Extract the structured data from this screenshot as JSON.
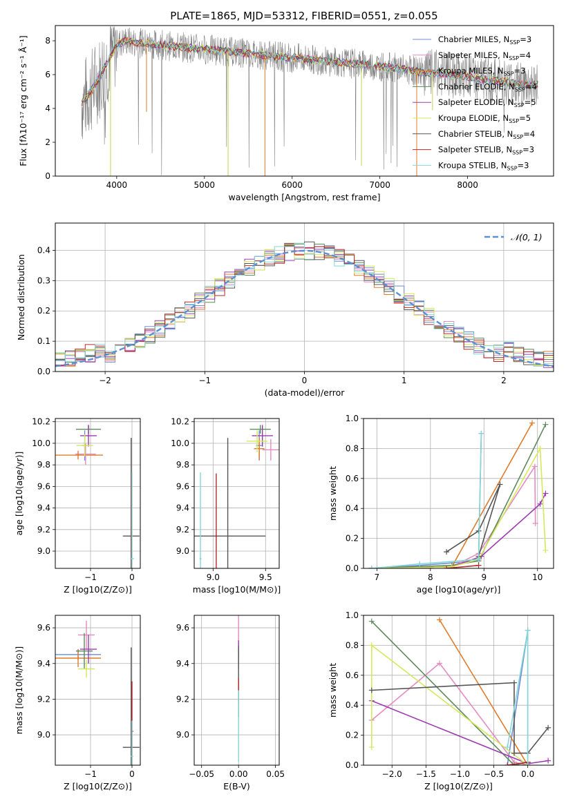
{
  "figure": {
    "title": "PLATE=1865, MJD=53312, FIBERID=0551, z=0.055"
  },
  "chart_data": [
    {
      "type": "line",
      "panel": "spectrum",
      "xlabel": "wavelength [Angstrom, rest frame]",
      "ylabel": "Flux [fλ10⁻¹⁷ erg cm⁻² s⁻¹ Å⁻¹]",
      "xlim": [
        3300,
        8980
      ],
      "ylim": [
        0,
        8.9
      ],
      "xticks": [
        4000,
        5000,
        6000,
        7000,
        8000
      ],
      "yticks": [
        0,
        2,
        4,
        6,
        8
      ],
      "grid": false,
      "legend_position": "top-right",
      "continuum": {
        "x": [
          3600,
          3700,
          3800,
          3900,
          4000,
          4100,
          4200,
          4400,
          4600,
          4800,
          5000,
          5200,
          5400,
          5600,
          5800,
          6000,
          6200,
          6400,
          6600,
          6800,
          7000,
          7200,
          7400,
          7600,
          7800,
          8000,
          8200,
          8400,
          8600,
          8800
        ],
        "y": [
          4.3,
          5.0,
          5.8,
          6.8,
          7.8,
          8.0,
          7.9,
          7.8,
          7.7,
          7.6,
          7.5,
          7.4,
          7.3,
          7.2,
          7.1,
          7.0,
          6.9,
          6.8,
          6.7,
          6.6,
          6.5,
          6.4,
          6.2,
          6.1,
          6.0,
          5.9,
          5.7,
          5.6,
          5.4,
          5.4
        ]
      },
      "series": [
        {
          "name": "Chabrier MILES, N_SSP=3",
          "color": "#6a8fd4"
        },
        {
          "name": "Salpeter MILES, N_SSP=4",
          "color": "#e58ac0"
        },
        {
          "name": "Kroupa MILES, N_SSP=3",
          "color": "#e07b2a"
        },
        {
          "name": "Chabrier ELODIE, N_SSP=4",
          "color": "#5b8a5b"
        },
        {
          "name": "Salpeter ELODIE, N_SSP=5",
          "color": "#9b3ab0"
        },
        {
          "name": "Kroupa ELODIE, N_SSP=5",
          "color": "#d4e85a"
        },
        {
          "name": "Chabrier STELIB, N_SSP=4",
          "color": "#555555"
        },
        {
          "name": "Salpeter STELIB, N_SSP=3",
          "color": "#b52a2a"
        },
        {
          "name": "Kroupa STELIB, N_SSP=3",
          "color": "#86d6d6"
        }
      ]
    },
    {
      "type": "line",
      "panel": "residuals",
      "xlabel": "(data-model)/error",
      "ylabel": "Normed distribution",
      "xlim": [
        -2.5,
        2.5
      ],
      "ylim": [
        0,
        0.49
      ],
      "xticks": [
        -2,
        -1,
        0,
        1,
        2
      ],
      "yticks": [
        0.0,
        0.1,
        0.2,
        0.3,
        0.4
      ],
      "grid": true,
      "legend_position": "top-right",
      "reference": {
        "name": "𝒩(0, 1)",
        "mean": 0,
        "sd": 1,
        "color": "#5b8fd4"
      },
      "histogram_bin_width": 0.1
    },
    {
      "type": "scatter",
      "panel": "age-vs-Z",
      "xlabel": "Z [log10(Z/Z⊙)]",
      "ylabel": "age  [log10(age/yr)]",
      "xlim": [
        -1.85,
        0.2
      ],
      "ylim": [
        8.84,
        10.23
      ],
      "xticks": [
        -1,
        0
      ],
      "yticks": [
        9.0,
        9.2,
        9.4,
        9.6,
        9.8,
        10.0,
        10.2
      ],
      "points": [
        {
          "series": "Chabrier MILES",
          "x": -1.14,
          "y": 9.98,
          "xerr": 0.06,
          "yerr": 0.14,
          "color": "#6a8fd4"
        },
        {
          "series": "Salpeter MILES",
          "x": -1.12,
          "y": 9.9,
          "xerr": 0.25,
          "yerr": 0.1,
          "color": "#e58ac0"
        },
        {
          "series": "Kroupa MILES",
          "x": -1.3,
          "y": 9.89,
          "xerr": 0.6,
          "yerr": 0.04,
          "color": "#e07b2a"
        },
        {
          "series": "Chabrier ELODIE",
          "x": -1.05,
          "y": 10.13,
          "xerr": 0.3,
          "yerr": 0.04,
          "color": "#5b8a5b"
        },
        {
          "series": "Salpeter ELODIE",
          "x": -1.05,
          "y": 10.07,
          "xerr": 0.2,
          "yerr": 0.1,
          "color": "#9b3ab0"
        },
        {
          "series": "Kroupa ELODIE",
          "x": -1.14,
          "y": 9.98,
          "xerr": 0.2,
          "yerr": 0.1,
          "color": "#d4e85a"
        },
        {
          "series": "Chabrier STELIB",
          "x": -0.02,
          "y": 9.14,
          "xerr": 0.2,
          "yerr": 0.91,
          "color": "#555555"
        },
        {
          "series": "Salpeter STELIB",
          "x": -0.01,
          "y": 9.14,
          "xerr": 0.01,
          "yerr": 0.58,
          "color": "#b52a2a"
        },
        {
          "series": "Kroupa STELIB",
          "x": 0.0,
          "y": 8.93,
          "xerr": 0.05,
          "yerr": 0.8,
          "color": "#86d6d6"
        }
      ]
    },
    {
      "type": "scatter",
      "panel": "age-vs-mass",
      "xlabel": "mass [log10(M/M⊙)]",
      "xlim": [
        8.82,
        9.63
      ],
      "ylim": [
        8.84,
        10.23
      ],
      "xticks": [
        9.0,
        9.5
      ],
      "yticks": [
        9.0,
        9.2,
        9.4,
        9.6,
        9.8,
        10.0,
        10.2
      ],
      "points": [
        {
          "series": "Chabrier MILES",
          "x": 9.44,
          "y": 9.98,
          "xerr": 0.03,
          "yerr": 0.14,
          "color": "#6a8fd4"
        },
        {
          "series": "Salpeter MILES",
          "x": 9.55,
          "y": 9.94,
          "xerr": 0.08,
          "yerr": 0.1,
          "color": "#e58ac0"
        },
        {
          "series": "Kroupa MILES",
          "x": 9.44,
          "y": 9.95,
          "xerr": 0.05,
          "yerr": 0.1,
          "color": "#e07b2a"
        },
        {
          "series": "Chabrier ELODIE",
          "x": 9.45,
          "y": 10.13,
          "xerr": 0.1,
          "yerr": 0.04,
          "color": "#5b8a5b"
        },
        {
          "series": "Salpeter ELODIE",
          "x": 9.47,
          "y": 10.07,
          "xerr": 0.1,
          "yerr": 0.1,
          "color": "#9b3ab0"
        },
        {
          "series": "Kroupa ELODIE",
          "x": 9.42,
          "y": 10.02,
          "xerr": 0.1,
          "yerr": 0.1,
          "color": "#d4e85a"
        },
        {
          "series": "Chabrier STELIB",
          "x": 9.14,
          "y": 9.14,
          "xerr": 0.36,
          "yerr": 0.91,
          "color": "#555555"
        },
        {
          "series": "Salpeter STELIB",
          "x": 9.03,
          "y": 9.14,
          "xerr": 0.01,
          "yerr": 0.58,
          "color": "#b52a2a"
        },
        {
          "series": "Kroupa STELIB",
          "x": 8.88,
          "y": 8.93,
          "xerr": 0.01,
          "yerr": 0.8,
          "color": "#86d6d6"
        }
      ]
    },
    {
      "type": "line",
      "panel": "mass-weight-vs-age",
      "xlabel": "age  [log10(age/yr)]",
      "ylabel": "mass weight",
      "xlim": [
        6.75,
        10.3
      ],
      "ylim": [
        0,
        1.0
      ],
      "xticks": [
        7,
        8,
        9,
        10
      ],
      "yticks": [
        0.0,
        0.2,
        0.4,
        0.6,
        0.8,
        1.0
      ],
      "series": [
        {
          "name": "Chabrier MILES",
          "color": "#6a8fd4",
          "x": [
            6.9,
            7.8,
            8.9,
            8.95
          ],
          "y": [
            0.0,
            0.02,
            0.05,
            0.9
          ]
        },
        {
          "name": "Salpeter MILES",
          "color": "#e58ac0",
          "x": [
            6.9,
            8.4,
            8.9,
            9.95,
            9.96
          ],
          "y": [
            0.0,
            0.01,
            0.1,
            0.68,
            0.3
          ]
        },
        {
          "name": "Kroupa MILES",
          "color": "#e07b2a",
          "x": [
            6.9,
            8.4,
            9.9
          ],
          "y": [
            0.0,
            0.01,
            0.97
          ]
        },
        {
          "name": "Chabrier ELODIE",
          "color": "#5b8a5b",
          "x": [
            6.9,
            8.4,
            8.9,
            10.15
          ],
          "y": [
            0.0,
            0.02,
            0.05,
            0.96
          ]
        },
        {
          "name": "Salpeter ELODIE",
          "color": "#9b3ab0",
          "x": [
            6.9,
            8.4,
            8.95,
            10.05,
            10.15
          ],
          "y": [
            0.0,
            0.01,
            0.08,
            0.43,
            0.5
          ]
        },
        {
          "name": "Kroupa ELODIE",
          "color": "#d4e85a",
          "x": [
            6.9,
            8.4,
            8.9,
            10.05,
            10.15
          ],
          "y": [
            0.0,
            0.01,
            0.06,
            0.8,
            0.12
          ]
        },
        {
          "name": "Chabrier STELIB",
          "color": "#555555",
          "x": [
            8.3,
            8.9,
            9.3,
            8.9
          ],
          "y": [
            0.11,
            0.25,
            0.56,
            0.08
          ]
        },
        {
          "name": "Salpeter STELIB",
          "color": "#b52a2a",
          "x": [
            8.3,
            8.9
          ],
          "y": [
            0.0,
            0.02
          ]
        },
        {
          "name": "Kroupa STELIB",
          "color": "#86d6d6",
          "x": [
            6.9,
            7.8,
            8.9,
            8.95
          ],
          "y": [
            0.0,
            0.03,
            0.06,
            0.9
          ]
        }
      ]
    },
    {
      "type": "scatter",
      "panel": "mass-vs-Z",
      "xlabel": "Z [log10(Z/Z⊙)]",
      "ylabel": "mass [log10(M/M⊙)]",
      "xlim": [
        -1.85,
        0.2
      ],
      "ylim": [
        8.83,
        9.67
      ],
      "xticks": [
        -1,
        0
      ],
      "yticks": [
        9.0,
        9.2,
        9.4,
        9.6
      ],
      "points": [
        {
          "series": "Chabrier MILES",
          "x": -1.3,
          "y": 9.45,
          "xerr": 0.55,
          "yerr": 0.03,
          "color": "#6a8fd4"
        },
        {
          "series": "Salpeter MILES",
          "x": -1.1,
          "y": 9.56,
          "xerr": 0.2,
          "yerr": 0.08,
          "color": "#e58ac0"
        },
        {
          "series": "Kroupa MILES",
          "x": -1.3,
          "y": 9.43,
          "xerr": 0.55,
          "yerr": 0.05,
          "color": "#e07b2a"
        },
        {
          "series": "Chabrier ELODIE",
          "x": -1.15,
          "y": 9.47,
          "xerr": 0.2,
          "yerr": 0.1,
          "color": "#5b8a5b"
        },
        {
          "series": "Salpeter ELODIE",
          "x": -1.05,
          "y": 9.48,
          "xerr": 0.2,
          "yerr": 0.08,
          "color": "#9b3ab0"
        },
        {
          "series": "Kroupa ELODIE",
          "x": -1.1,
          "y": 9.37,
          "xerr": 0.2,
          "yerr": 0.05,
          "color": "#d4e85a"
        },
        {
          "series": "Chabrier STELIB",
          "x": -0.02,
          "y": 8.93,
          "xerr": 0.2,
          "yerr": 0.56,
          "color": "#555555"
        },
        {
          "series": "Salpeter STELIB",
          "x": 0.0,
          "y": 9.02,
          "xerr": 0.03,
          "yerr": 0.28,
          "color": "#b52a2a"
        },
        {
          "series": "Kroupa STELIB",
          "x": 0.0,
          "y": 8.88,
          "xerr": 0.03,
          "yerr": 0.2,
          "color": "#86d6d6"
        }
      ]
    },
    {
      "type": "scatter",
      "panel": "mass-vs-EBV",
      "xlabel": "E(B-V)",
      "xlim": [
        -0.06,
        0.055
      ],
      "ylim": [
        8.83,
        9.67
      ],
      "xticks": [
        -0.05,
        0.0,
        0.05
      ],
      "yticks": [
        9.0,
        9.2,
        9.4,
        9.6
      ],
      "points": [
        {
          "series": "Salpeter MILES",
          "x": 0.0,
          "y": 9.55,
          "yerr": 0.12,
          "color": "#e58ac0"
        },
        {
          "series": "Salpeter ELODIE",
          "x": 0.0,
          "y": 9.45,
          "yerr": 0.08,
          "color": "#9b3ab0"
        },
        {
          "series": "Chabrier STELIB",
          "x": 0.0,
          "y": 9.3,
          "yerr": 0.2,
          "color": "#555555"
        },
        {
          "series": "Salpeter STELIB",
          "x": 0.0,
          "y": 9.25,
          "yerr": 0.07,
          "color": "#b52a2a"
        },
        {
          "series": "Kroupa STELIB",
          "x": 0.0,
          "y": 9.05,
          "yerr": 0.2,
          "color": "#86d6d6"
        }
      ]
    },
    {
      "type": "line",
      "panel": "mass-weight-vs-Z",
      "xlabel": "Z [log10(Z/Z⊙)]",
      "ylabel": "mass weight",
      "xlim": [
        -2.42,
        0.38
      ],
      "ylim": [
        0,
        1.0
      ],
      "xticks": [
        -2.0,
        -1.5,
        -1.0,
        -0.5,
        0.0
      ],
      "yticks": [
        0.0,
        0.2,
        0.4,
        0.6,
        0.8,
        1.0
      ],
      "series": [
        {
          "name": "Chabrier MILES",
          "color": "#6a8fd4",
          "x": [
            -0.3,
            0.0,
            0.0
          ],
          "y": [
            0.0,
            0.9,
            0.0
          ]
        },
        {
          "name": "Salpeter MILES",
          "color": "#e58ac0",
          "x": [
            -2.3,
            -1.3,
            -0.2,
            0.0
          ],
          "y": [
            0.3,
            0.68,
            0.02,
            0.0
          ]
        },
        {
          "name": "Kroupa MILES",
          "color": "#e07b2a",
          "x": [
            -1.3,
            0.0
          ],
          "y": [
            0.97,
            0.0
          ]
        },
        {
          "name": "Chabrier ELODIE",
          "color": "#5b8a5b",
          "x": [
            -2.3,
            -0.2,
            0.0
          ],
          "y": [
            0.96,
            0.0,
            0.02
          ]
        },
        {
          "name": "Salpeter ELODIE",
          "color": "#9b3ab0",
          "x": [
            -2.3,
            0.0,
            0.3
          ],
          "y": [
            0.43,
            0.01,
            0.03
          ]
        },
        {
          "name": "Kroupa ELODIE",
          "color": "#d4e85a",
          "x": [
            -2.3,
            -2.3,
            0.0
          ],
          "y": [
            0.12,
            0.8,
            0.0
          ]
        },
        {
          "name": "Chabrier STELIB",
          "color": "#555555",
          "x": [
            -2.3,
            -0.2,
            -0.2,
            0.0,
            0.3
          ],
          "y": [
            0.5,
            0.55,
            0.08,
            0.08,
            0.25
          ]
        },
        {
          "name": "Salpeter STELIB",
          "color": "#b52a2a",
          "x": [
            -0.3,
            0.0
          ],
          "y": [
            0.0,
            0.02
          ]
        },
        {
          "name": "Kroupa STELIB",
          "color": "#86d6d6",
          "x": [
            -0.3,
            0.0,
            0.0
          ],
          "y": [
            0.12,
            0.9,
            0.0
          ]
        }
      ]
    }
  ]
}
